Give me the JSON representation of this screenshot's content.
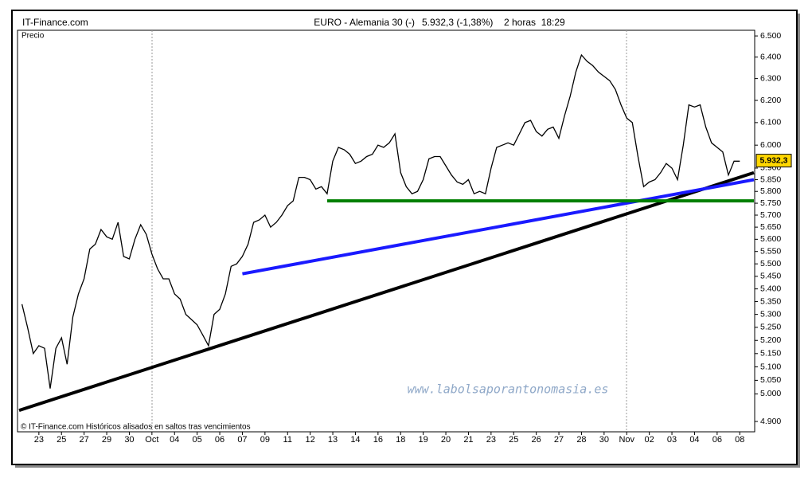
{
  "chart_data": {
    "type": "line",
    "site": "IT-Finance.com",
    "title": "EURO - Alemania 30 (-)",
    "quote": "5.932,3 (-1,38%)",
    "period": "2 horas  18:29",
    "y_label": "Precio",
    "footer": "© IT-Finance.com Históricos alisados en saltos tras vencimientos",
    "watermark": "www.labolsaporantonomasia.es",
    "log_scale": true,
    "ylim": [
      4863,
      6527
    ],
    "yticks": [
      {
        "value": 6500,
        "label": "6.500"
      },
      {
        "value": 6400,
        "label": "6.400"
      },
      {
        "value": 6300,
        "label": "6.300"
      },
      {
        "value": 6200,
        "label": "6.200"
      },
      {
        "value": 6100,
        "label": "6.100"
      },
      {
        "value": 6000,
        "label": "6.000"
      },
      {
        "value": 5900,
        "label": "5.900"
      },
      {
        "value": 5850,
        "label": "5.850"
      },
      {
        "value": 5800,
        "label": "5.800"
      },
      {
        "value": 5750,
        "label": "5.750"
      },
      {
        "value": 5700,
        "label": "5.700"
      },
      {
        "value": 5650,
        "label": "5.650"
      },
      {
        "value": 5600,
        "label": "5.600"
      },
      {
        "value": 5550,
        "label": "5.550"
      },
      {
        "value": 5500,
        "label": "5.500"
      },
      {
        "value": 5450,
        "label": "5.450"
      },
      {
        "value": 5400,
        "label": "5.400"
      },
      {
        "value": 5350,
        "label": "5.350"
      },
      {
        "value": 5300,
        "label": "5.300"
      },
      {
        "value": 5250,
        "label": "5.250"
      },
      {
        "value": 5200,
        "label": "5.200"
      },
      {
        "value": 5150,
        "label": "5.150"
      },
      {
        "value": 5100,
        "label": "5.100"
      },
      {
        "value": 5050,
        "label": "5.050"
      },
      {
        "value": 5000,
        "label": "5.000"
      },
      {
        "value": 4900,
        "label": "4.900"
      }
    ],
    "last_price": {
      "value": 5932.3,
      "label": "5.932,3"
    },
    "categories": [
      null,
      null,
      null,
      "23",
      null,
      null,
      null,
      "25",
      null,
      null,
      null,
      "27",
      null,
      null,
      null,
      "29",
      null,
      null,
      null,
      "30",
      null,
      null,
      null,
      "Oct",
      null,
      null,
      null,
      "04",
      null,
      null,
      null,
      "05",
      null,
      null,
      null,
      "06",
      null,
      null,
      null,
      "07",
      null,
      null,
      null,
      "09",
      null,
      null,
      null,
      "11",
      null,
      null,
      null,
      "12",
      null,
      null,
      null,
      "13",
      null,
      null,
      null,
      "14",
      null,
      null,
      null,
      "16",
      null,
      null,
      null,
      "18",
      null,
      null,
      null,
      "19",
      null,
      null,
      null,
      "20",
      null,
      null,
      null,
      "21",
      null,
      null,
      null,
      "23",
      null,
      null,
      null,
      "25",
      null,
      null,
      null,
      "26",
      null,
      null,
      null,
      "27",
      null,
      null,
      null,
      "28",
      null,
      null,
      null,
      "30",
      null,
      null,
      null,
      "Nov",
      null,
      null,
      null,
      "02",
      null,
      null,
      null,
      "03",
      null,
      null,
      null,
      "04",
      null,
      null,
      null,
      "06",
      null,
      null,
      null,
      "08",
      null,
      null
    ],
    "series": [
      {
        "name": "Precio",
        "color": "#000000",
        "values": [
          5340,
          5250,
          5150,
          5180,
          5170,
          5020,
          5170,
          5210,
          5110,
          5290,
          5380,
          5440,
          5560,
          5580,
          5640,
          5610,
          5600,
          5670,
          5530,
          5520,
          5600,
          5660,
          5620,
          5540,
          5480,
          5440,
          5440,
          5380,
          5360,
          5300,
          5280,
          5260,
          5220,
          5180,
          5300,
          5320,
          5380,
          5490,
          5500,
          5530,
          5580,
          5670,
          5680,
          5700,
          5650,
          5670,
          5700,
          5740,
          5760,
          5860,
          5860,
          5850,
          5810,
          5820,
          5790,
          5930,
          5990,
          5980,
          5960,
          5920,
          5930,
          5950,
          5960,
          6000,
          5990,
          6010,
          6050,
          5880,
          5820,
          5790,
          5800,
          5850,
          5940,
          5950,
          5950,
          5910,
          5870,
          5840,
          5830,
          5850,
          5790,
          5800,
          5790,
          5900,
          5990,
          6000,
          6010,
          6000,
          6050,
          6100,
          6110,
          6060,
          6040,
          6070,
          6080,
          6030,
          6130,
          6220,
          6330,
          6410,
          6380,
          6360,
          6330,
          6310,
          6290,
          6250,
          6180,
          6120,
          6100,
          5950,
          5820,
          5840,
          5850,
          5880,
          5920,
          5900,
          5850,
          6000,
          6180,
          6170,
          6180,
          6080,
          6010,
          5990,
          5970,
          5870,
          5930,
          5930,
          null,
          null
        ]
      }
    ],
    "trendlines": [
      {
        "color": "#000000",
        "x": [
          -0.5,
          129.5
        ],
        "values": [
          4940,
          5880
        ]
      },
      {
        "color": "#1a1aff",
        "x": [
          39,
          129.5
        ],
        "values": [
          5460,
          5850
        ]
      },
      {
        "color": "#008000",
        "x": [
          54,
          129.5
        ],
        "values": [
          5760,
          5760
        ]
      }
    ]
  }
}
